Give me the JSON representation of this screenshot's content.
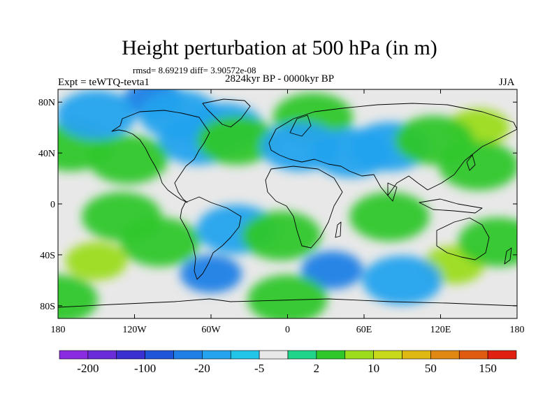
{
  "title": "Height perturbation at 500 hPa (in m)",
  "stats_line": "rmsd= 8.69219  diff= 3.90572e-08",
  "left_label": "Expt = teWTQ-tevta1",
  "center_label": "2824kyr BP - 0000kyr BP",
  "right_label": "JJA",
  "lat_ticks": [
    {
      "label": "80N",
      "value": 80
    },
    {
      "label": "40N",
      "value": 40
    },
    {
      "label": "0",
      "value": 0
    },
    {
      "label": "40S",
      "value": -40
    },
    {
      "label": "80S",
      "value": -80
    }
  ],
  "lon_ticks": [
    {
      "label": "180",
      "value": -180
    },
    {
      "label": "120W",
      "value": -120
    },
    {
      "label": "60W",
      "value": -60
    },
    {
      "label": "0",
      "value": 0
    },
    {
      "label": "60E",
      "value": 60
    },
    {
      "label": "120E",
      "value": 120
    },
    {
      "label": "180",
      "value": 180
    }
  ],
  "colorbar": {
    "colors": [
      "#8a2be2",
      "#6a2bd8",
      "#3a2fd0",
      "#1f55d8",
      "#1f7fe6",
      "#25a3ee",
      "#22c4e8",
      "#e8e8e8",
      "#20d58a",
      "#2fc72a",
      "#9cdc1c",
      "#c8d81a",
      "#e0b814",
      "#e08812",
      "#e05a10",
      "#e02010"
    ],
    "labels": [
      {
        "text": "-200",
        "boundary": 1
      },
      {
        "text": "-100",
        "boundary": 3
      },
      {
        "text": "-20",
        "boundary": 5
      },
      {
        "text": "-5",
        "boundary": 7
      },
      {
        "text": "2",
        "boundary": 9
      },
      {
        "text": "10",
        "boundary": 11
      },
      {
        "text": "50",
        "boundary": 13
      },
      {
        "text": "150",
        "boundary": 15
      }
    ]
  },
  "field_anomalies": [
    {
      "lon": -105,
      "lat": 82,
      "level": -2
    },
    {
      "lon": -85,
      "lat": 70,
      "level": -1
    },
    {
      "lon": -50,
      "lat": 60,
      "level": -1
    },
    {
      "lon": -70,
      "lat": 50,
      "level": -1
    },
    {
      "lon": -40,
      "lat": 50,
      "level": 1
    },
    {
      "lon": -125,
      "lat": 35,
      "level": 1
    },
    {
      "lon": -170,
      "lat": 45,
      "level": 1
    },
    {
      "lon": -150,
      "lat": 70,
      "level": -1
    },
    {
      "lon": 20,
      "lat": 68,
      "level": 1
    },
    {
      "lon": 50,
      "lat": 40,
      "level": -1
    },
    {
      "lon": 10,
      "lat": 45,
      "level": -1
    },
    {
      "lon": 80,
      "lat": 45,
      "level": -1
    },
    {
      "lon": 150,
      "lat": 60,
      "level": 2
    },
    {
      "lon": 115,
      "lat": 50,
      "level": 1
    },
    {
      "lon": 150,
      "lat": 30,
      "level": 1
    },
    {
      "lon": -150,
      "lat": -45,
      "level": 2
    },
    {
      "lon": -100,
      "lat": -30,
      "level": 1
    },
    {
      "lon": -60,
      "lat": -55,
      "level": -2
    },
    {
      "lon": -40,
      "lat": -20,
      "level": -1
    },
    {
      "lon": 35,
      "lat": -52,
      "level": -2
    },
    {
      "lon": 130,
      "lat": -48,
      "level": 2
    },
    {
      "lon": 165,
      "lat": -30,
      "level": 1
    },
    {
      "lon": 90,
      "lat": -60,
      "level": -1
    },
    {
      "lon": 80,
      "lat": -10,
      "level": 1
    },
    {
      "lon": -5,
      "lat": -25,
      "level": 1
    },
    {
      "lon": -130,
      "lat": -10,
      "level": 1
    },
    {
      "lon": 0,
      "lat": -75,
      "level": 1
    },
    {
      "lon": -180,
      "lat": -75,
      "level": 1
    }
  ]
}
